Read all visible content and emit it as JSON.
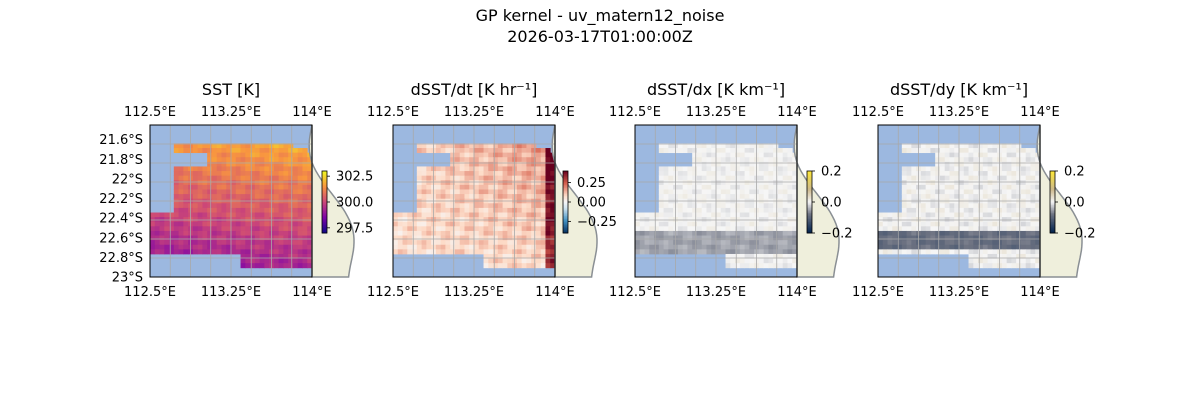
{
  "figure": {
    "title_line1": "GP kernel - uv_matern12_noise",
    "title_line2": "2026-03-17T01:00:00Z"
  },
  "colors": {
    "ocean_masked": "#9cb8e0",
    "land": "#efefdc",
    "coast": "#8a8f94",
    "grid": "#a9a9a9"
  },
  "chart_data": [
    {
      "type": "heatmap",
      "title": "SST [K]",
      "xlabel": "",
      "ylabel": "",
      "x_ticks": [
        "112.5°E",
        "113.25°E",
        "114°E"
      ],
      "x_tick_values": [
        112.5,
        113.25,
        114.0
      ],
      "y_ticks": [
        "21.6°S",
        "21.8°S",
        "22°S",
        "22.2°S",
        "22.4°S",
        "22.6°S",
        "22.8°S",
        "23°S"
      ],
      "y_tick_values": [
        -21.6,
        -21.8,
        -22.0,
        -22.2,
        -22.4,
        -22.6,
        -22.8,
        -23.0
      ],
      "xlim": [
        112.5,
        114.0
      ],
      "ylim": [
        -23.0,
        -21.45
      ],
      "grid": true,
      "colorbar": {
        "colormap": "plasma",
        "ticks": [
          "302.5",
          "300.0",
          "297.5"
        ],
        "tick_values": [
          302.5,
          300.0,
          297.5
        ],
        "range": [
          297.0,
          303.0
        ]
      },
      "field": "sst"
    },
    {
      "type": "heatmap",
      "title": "dSST/dt [K hr⁻¹]",
      "xlabel": "",
      "ylabel": "",
      "x_ticks": [
        "112.5°E",
        "113.25°E",
        "114°E"
      ],
      "x_tick_values": [
        112.5,
        113.25,
        114.0
      ],
      "y_ticks": [],
      "y_tick_values": [],
      "xlim": [
        112.5,
        114.0
      ],
      "ylim": [
        -23.0,
        -21.45
      ],
      "grid": true,
      "colorbar": {
        "colormap": "RdBu_r",
        "ticks": [
          "0.25",
          "0.00",
          "−0.25"
        ],
        "tick_values": [
          0.25,
          0.0,
          -0.25
        ],
        "range": [
          -0.4,
          0.4
        ]
      },
      "field": "dsst_dt"
    },
    {
      "type": "heatmap",
      "title": "dSST/dx [K km⁻¹]",
      "xlabel": "",
      "ylabel": "",
      "x_ticks": [
        "112.5°E",
        "113.25°E",
        "114°E"
      ],
      "x_tick_values": [
        112.5,
        113.25,
        114.0
      ],
      "y_ticks": [],
      "y_tick_values": [],
      "xlim": [
        112.5,
        114.0
      ],
      "ylim": [
        -23.0,
        -21.45
      ],
      "grid": true,
      "colorbar": {
        "colormap": "cividis-diverging",
        "ticks": [
          "0.2",
          "0.0",
          "−0.2"
        ],
        "tick_values": [
          0.2,
          0.0,
          -0.2
        ],
        "range": [
          -0.2,
          0.2
        ]
      },
      "field": "dsst_dx"
    },
    {
      "type": "heatmap",
      "title": "dSST/dy [K km⁻¹]",
      "xlabel": "",
      "ylabel": "",
      "x_ticks": [
        "112.5°E",
        "113.25°E",
        "114°E"
      ],
      "x_tick_values": [
        112.5,
        113.25,
        114.0
      ],
      "y_ticks": [],
      "y_tick_values": [],
      "xlim": [
        112.5,
        114.0
      ],
      "ylim": [
        -23.0,
        -21.45
      ],
      "grid": true,
      "colorbar": {
        "colormap": "cividis-diverging",
        "ticks": [
          "0.2",
          "0.0",
          "−0.2"
        ],
        "tick_values": [
          0.2,
          0.0,
          -0.2
        ],
        "range": [
          -0.2,
          0.2
        ]
      },
      "field": "dsst_dy"
    }
  ]
}
